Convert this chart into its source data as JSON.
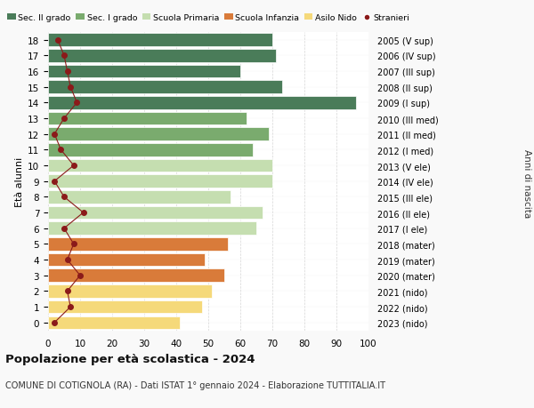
{
  "ages": [
    18,
    17,
    16,
    15,
    14,
    13,
    12,
    11,
    10,
    9,
    8,
    7,
    6,
    5,
    4,
    3,
    2,
    1,
    0
  ],
  "bar_values": [
    70,
    71,
    60,
    73,
    96,
    62,
    69,
    64,
    70,
    70,
    57,
    67,
    65,
    56,
    49,
    55,
    51,
    48,
    41
  ],
  "stranieri": [
    3,
    5,
    6,
    7,
    9,
    5,
    2,
    4,
    8,
    2,
    5,
    11,
    5,
    8,
    6,
    10,
    6,
    7,
    2
  ],
  "right_labels": [
    "2005 (V sup)",
    "2006 (IV sup)",
    "2007 (III sup)",
    "2008 (II sup)",
    "2009 (I sup)",
    "2010 (III med)",
    "2011 (II med)",
    "2012 (I med)",
    "2013 (V ele)",
    "2014 (IV ele)",
    "2015 (III ele)",
    "2016 (II ele)",
    "2017 (I ele)",
    "2018 (mater)",
    "2019 (mater)",
    "2020 (mater)",
    "2021 (nido)",
    "2022 (nido)",
    "2023 (nido)"
  ],
  "bar_colors": [
    "#4a7c59",
    "#4a7c59",
    "#4a7c59",
    "#4a7c59",
    "#4a7c59",
    "#7aab6e",
    "#7aab6e",
    "#7aab6e",
    "#c5deb0",
    "#c5deb0",
    "#c5deb0",
    "#c5deb0",
    "#c5deb0",
    "#d97b3a",
    "#d97b3a",
    "#d97b3a",
    "#f5d97a",
    "#f5d97a",
    "#f5d97a"
  ],
  "legend_colors": [
    "#4a7c59",
    "#7aab6e",
    "#c5deb0",
    "#d97b3a",
    "#f5d97a",
    "#8b1a1a"
  ],
  "legend_labels": [
    "Sec. II grado",
    "Sec. I grado",
    "Scuola Primaria",
    "Scuola Infanzia",
    "Asilo Nido",
    "Stranieri"
  ],
  "title_bold": "Popolazione per età scolastica - 2024",
  "subtitle": "COMUNE DI COTIGNOLA (RA) - Dati ISTAT 1° gennaio 2024 - Elaborazione TUTTITALIA.IT",
  "xlabel_left": "Età alunni",
  "ylabel_right": "Anni di nascita",
  "xlim": [
    0,
    100
  ],
  "background_color": "#f9f9f9",
  "plot_bg_color": "#ffffff",
  "stranieri_color": "#8b1a1a",
  "stranieri_line_color": "#8b1a1a"
}
